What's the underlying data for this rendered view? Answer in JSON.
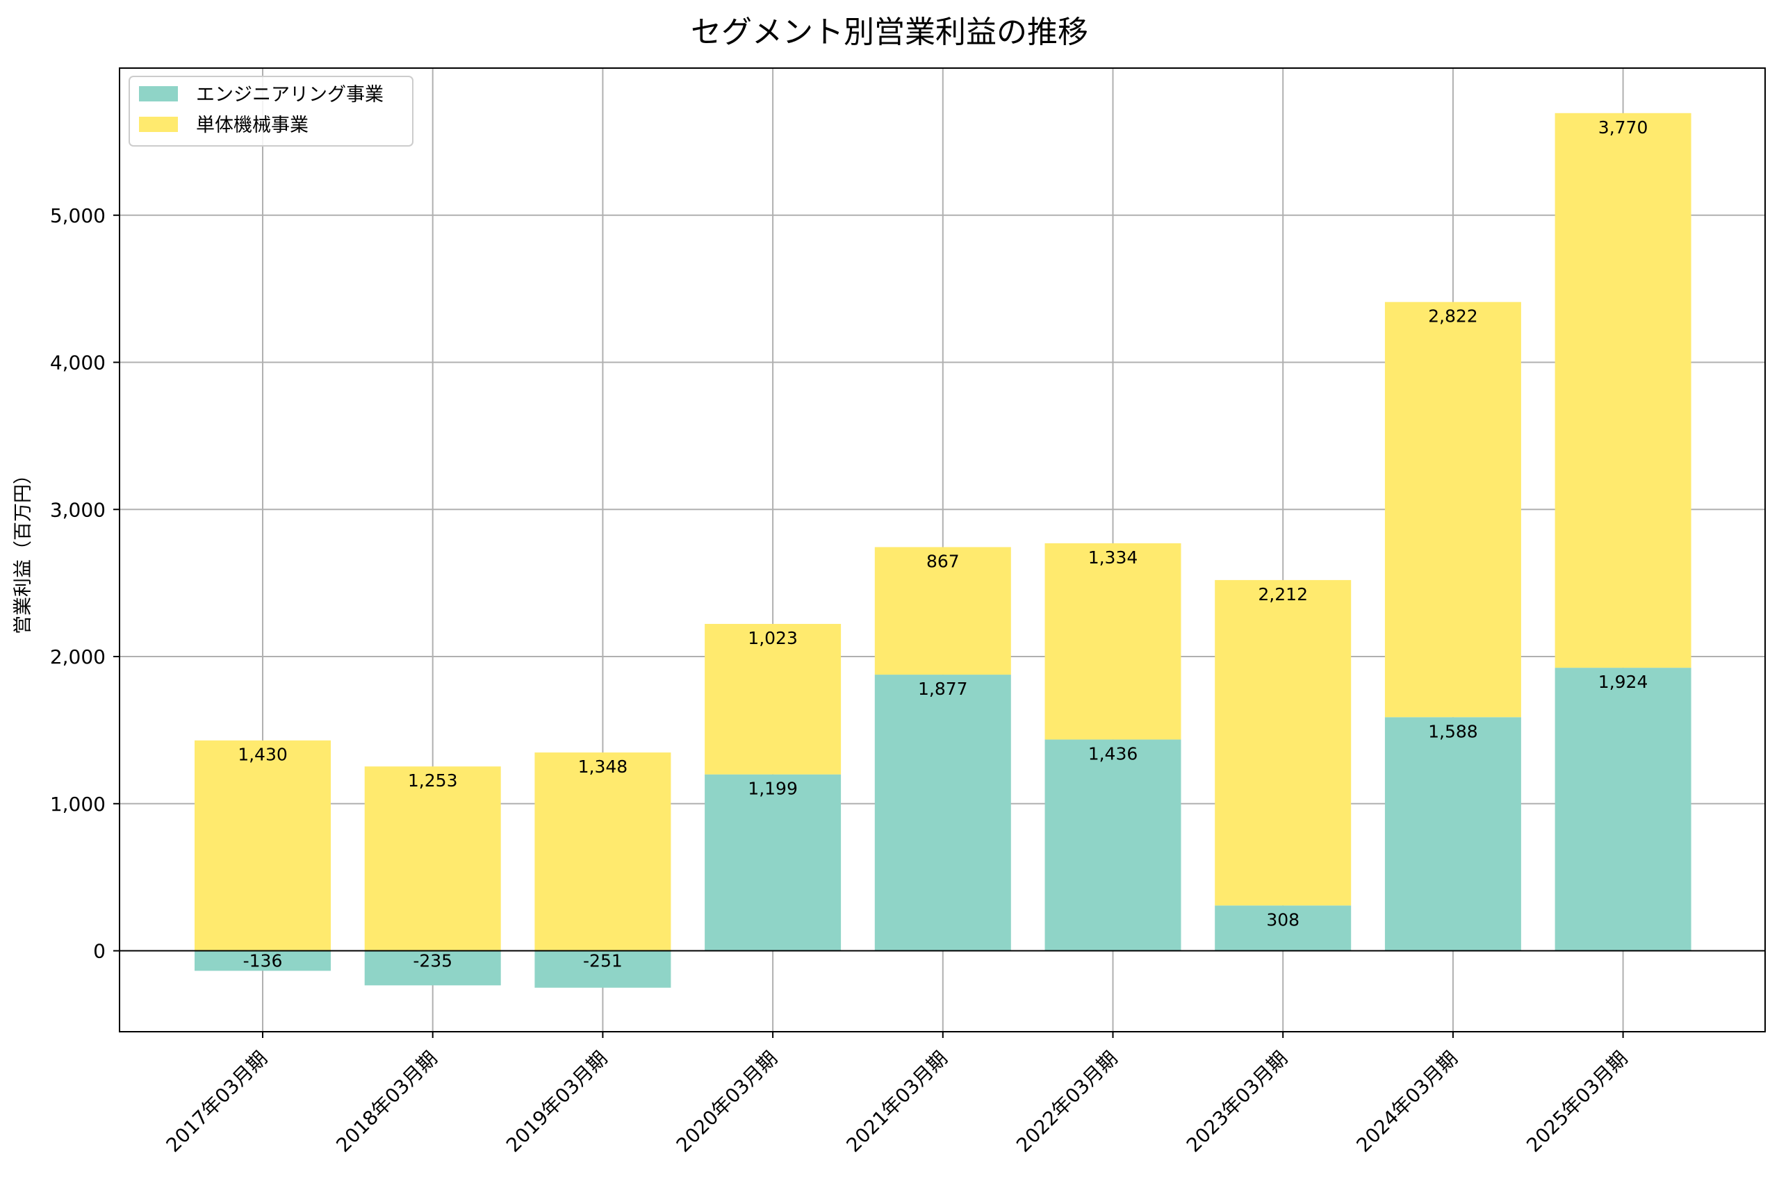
{
  "chart_data": {
    "type": "bar",
    "stacked": true,
    "title": "セグメント別営業利益の推移",
    "xlabel": "",
    "ylabel": "営業利益（百万円）",
    "categories": [
      "2017年03月期",
      "2018年03月期",
      "2019年03月期",
      "2020年03月期",
      "2021年03月期",
      "2022年03月期",
      "2023年03月期",
      "2024年03月期",
      "2025年03月期"
    ],
    "series": [
      {
        "name": "エンジニアリング事業",
        "color": "#8fd4c7",
        "values": [
          -136,
          -235,
          -251,
          1199,
          1877,
          1436,
          308,
          1588,
          1924
        ],
        "labels": [
          "-136",
          "-235",
          "-251",
          "1,199",
          "1,877",
          "1,436",
          "308",
          "1,588",
          "1,924"
        ]
      },
      {
        "name": "単体機械事業",
        "color": "#ffea6e",
        "values": [
          1430,
          1253,
          1348,
          1023,
          867,
          1334,
          2212,
          2822,
          3770
        ],
        "labels": [
          "1,430",
          "1,253",
          "1,348",
          "1,023",
          "867",
          "1,334",
          "2,212",
          "2,822",
          "3,770"
        ]
      }
    ],
    "ylim": [
      -550,
      6000
    ],
    "yticks": [
      0,
      1000,
      2000,
      3000,
      4000,
      5000
    ],
    "ytick_labels": [
      "0",
      "1,000",
      "2,000",
      "3,000",
      "4,000",
      "5,000"
    ],
    "grid": true,
    "legend_position": "top-left"
  }
}
